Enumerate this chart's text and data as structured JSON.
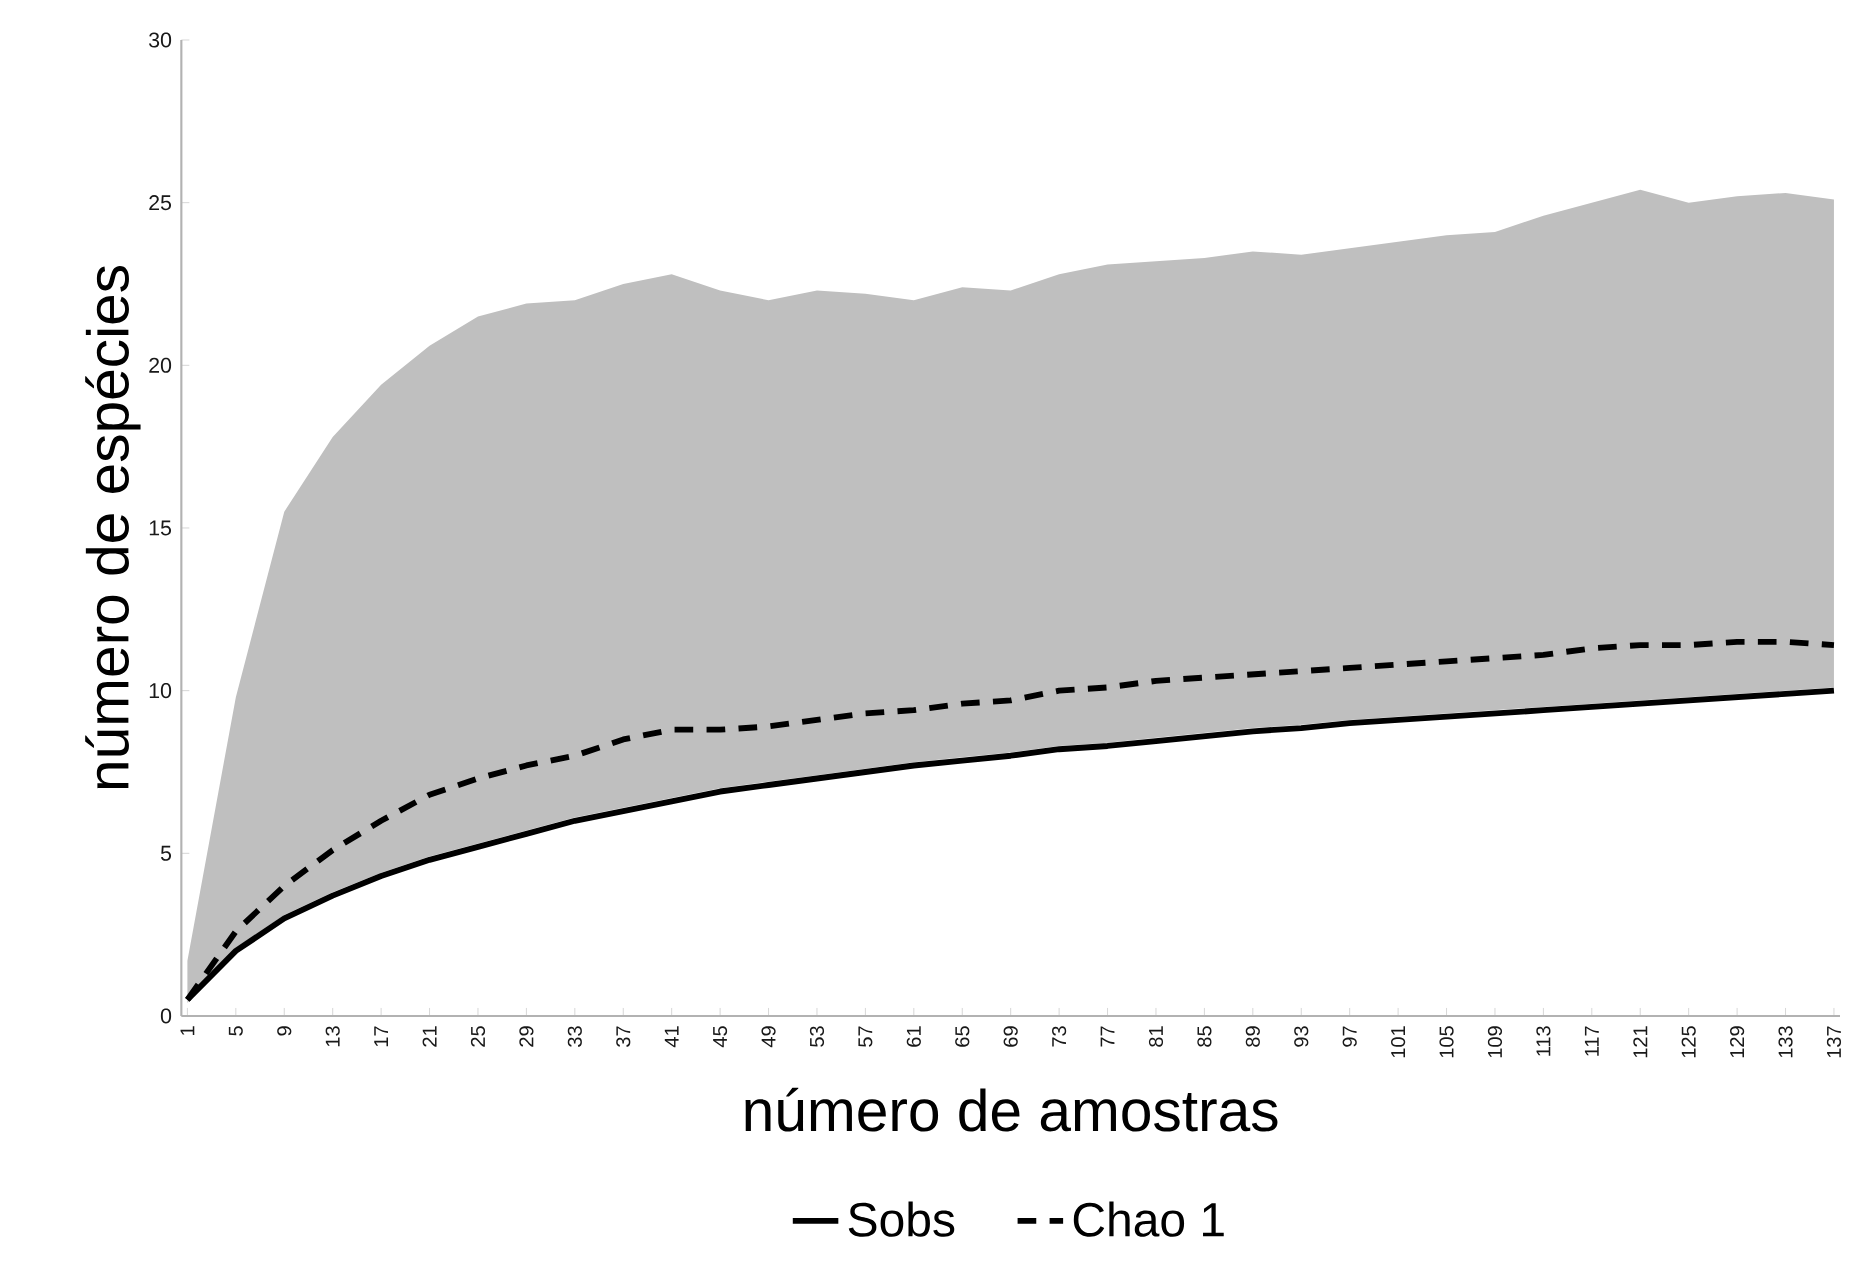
{
  "chart_data": {
    "type": "line",
    "xlabel": "número de amostras",
    "ylabel": "número de espécies",
    "xlim": [
      0.5,
      137.5
    ],
    "ylim": [
      0,
      30
    ],
    "xticks": [
      1,
      5,
      9,
      13,
      17,
      21,
      25,
      29,
      33,
      37,
      41,
      45,
      49,
      53,
      57,
      61,
      65,
      69,
      73,
      77,
      81,
      85,
      89,
      93,
      97,
      101,
      105,
      109,
      113,
      117,
      121,
      125,
      129,
      133,
      137
    ],
    "yticks": [
      0,
      5,
      10,
      15,
      20,
      25,
      30
    ],
    "grid": false,
    "legend": "bottom",
    "marker": "none",
    "series": [
      {
        "name": "Sobs",
        "color": "#000000",
        "line_style": "solid",
        "x": [
          1,
          5,
          9,
          13,
          17,
          21,
          25,
          29,
          33,
          37,
          41,
          45,
          49,
          53,
          57,
          61,
          65,
          69,
          73,
          77,
          81,
          85,
          89,
          93,
          97,
          101,
          105,
          109,
          113,
          117,
          121,
          125,
          129,
          133,
          137
        ],
        "values": [
          0.5,
          2.0,
          3.0,
          3.7,
          4.3,
          4.8,
          5.2,
          5.6,
          6.0,
          6.3,
          6.6,
          6.9,
          7.1,
          7.3,
          7.5,
          7.7,
          7.85,
          8.0,
          8.2,
          8.3,
          8.45,
          8.6,
          8.75,
          8.85,
          9.0,
          9.1,
          9.2,
          9.3,
          9.4,
          9.5,
          9.6,
          9.7,
          9.8,
          9.9,
          10.0
        ]
      },
      {
        "name": "Chao 1",
        "color": "#000000",
        "line_style": "dashed",
        "x": [
          1,
          5,
          9,
          13,
          17,
          21,
          25,
          29,
          33,
          37,
          41,
          45,
          49,
          53,
          57,
          61,
          65,
          69,
          73,
          77,
          81,
          85,
          89,
          93,
          97,
          101,
          105,
          109,
          113,
          117,
          121,
          125,
          129,
          133,
          137
        ],
        "values": [
          0.5,
          2.6,
          4.0,
          5.1,
          6.0,
          6.8,
          7.3,
          7.7,
          8.0,
          8.5,
          8.8,
          8.8,
          8.9,
          9.1,
          9.3,
          9.4,
          9.6,
          9.7,
          10.0,
          10.1,
          10.3,
          10.4,
          10.5,
          10.6,
          10.7,
          10.8,
          10.9,
          11.0,
          11.1,
          11.3,
          11.4,
          11.4,
          11.5,
          11.5,
          11.4
        ],
        "lower": [
          0.4,
          2.1,
          3.1,
          3.8,
          4.4,
          4.9,
          5.3,
          5.7,
          6.1,
          6.4,
          6.7,
          7.0,
          7.2,
          7.4,
          7.6,
          7.8,
          7.95,
          8.1,
          8.3,
          8.4,
          8.55,
          8.7,
          8.85,
          8.95,
          9.1,
          9.2,
          9.3,
          9.4,
          9.5,
          9.6,
          9.7,
          9.8,
          9.9,
          10.0,
          10.1
        ],
        "upper": [
          1.7,
          9.8,
          15.5,
          17.8,
          19.4,
          20.6,
          21.5,
          21.9,
          22.0,
          22.5,
          22.8,
          22.3,
          22.0,
          22.3,
          22.2,
          22.0,
          22.4,
          22.3,
          22.8,
          23.1,
          23.2,
          23.3,
          23.5,
          23.4,
          23.6,
          23.8,
          24.0,
          24.1,
          24.6,
          25.0,
          25.4,
          25.0,
          25.2,
          25.3,
          25.1
        ]
      }
    ]
  }
}
